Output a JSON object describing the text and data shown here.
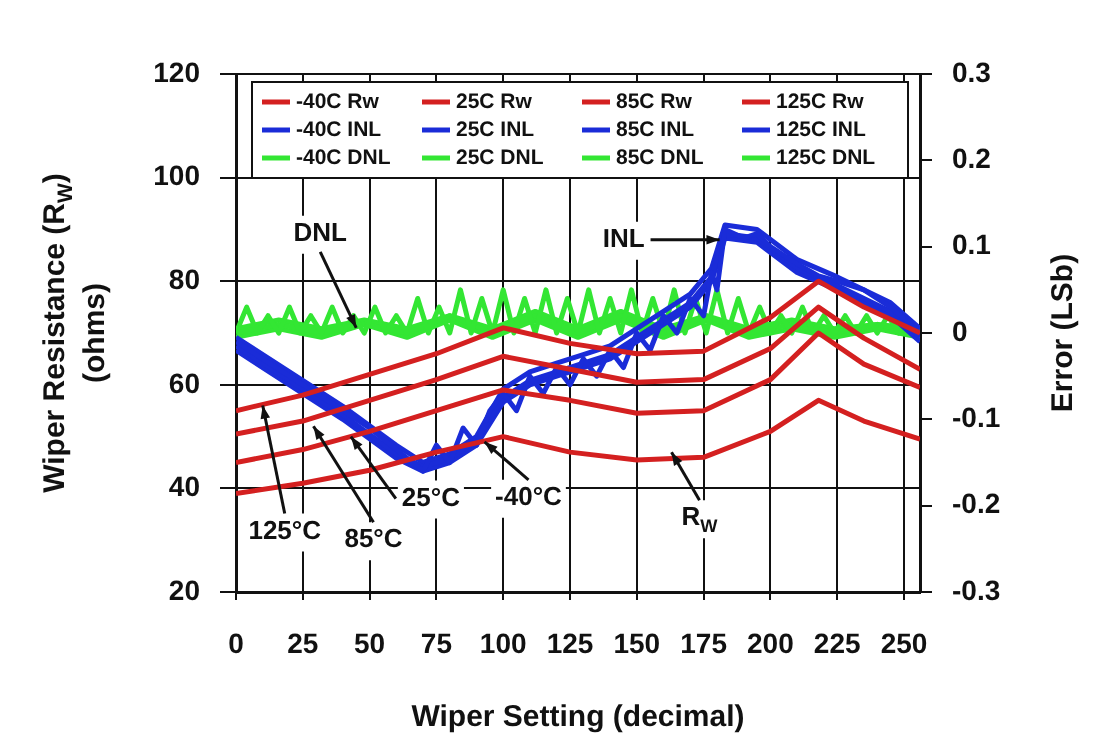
{
  "chart_data": {
    "type": "line",
    "xlabel": "Wiper Setting (decimal)",
    "ylabel": "Wiper Resistance (R$_{W}$) (ohms)",
    "y2label": "Error (LSb)",
    "xlim": [
      0,
      256
    ],
    "xticks": [
      0,
      25,
      50,
      75,
      100,
      125,
      150,
      175,
      200,
      225,
      250
    ],
    "ylim": [
      20,
      120
    ],
    "yticks": [
      20,
      40,
      60,
      80,
      100,
      120
    ],
    "y2lim": [
      -0.3,
      0.3
    ],
    "y2ticks": [
      -0.3,
      -0.2,
      -0.1,
      0,
      0.1,
      0.2,
      0.3
    ],
    "grid": true,
    "legend": "top",
    "marker": "none",
    "line_style": "solid",
    "series": [
      {
        "name": "-40C Rw",
        "color": "#d42020",
        "x": [
          0,
          25,
          50,
          75,
          100,
          125,
          150,
          175,
          200,
          218,
          235,
          256
        ],
        "values": [
          39,
          41,
          43.5,
          47,
          50,
          47,
          45.5,
          46,
          51,
          57,
          53,
          49.5
        ]
      },
      {
        "name": "25C Rw",
        "color": "#d42020",
        "x": [
          0,
          25,
          50,
          75,
          100,
          125,
          150,
          175,
          200,
          218,
          235,
          256
        ],
        "values": [
          45,
          47.5,
          51,
          55,
          59,
          57,
          54.5,
          55,
          61,
          70,
          64,
          59.5
        ]
      },
      {
        "name": "85C Rw",
        "color": "#d42020",
        "x": [
          0,
          25,
          50,
          75,
          100,
          125,
          150,
          175,
          200,
          218,
          235,
          256
        ],
        "values": [
          50.5,
          53,
          57,
          61,
          65.5,
          63,
          60.5,
          61,
          67,
          75,
          69,
          63
        ]
      },
      {
        "name": "125C Rw",
        "color": "#d42020",
        "x": [
          0,
          25,
          50,
          75,
          100,
          125,
          150,
          175,
          200,
          218,
          235,
          256
        ],
        "values": [
          55,
          58,
          62,
          66,
          71,
          68,
          66,
          66.5,
          73,
          80,
          75,
          70
        ]
      },
      {
        "name": "-40C INL",
        "color": "#1a2cd8",
        "axis": "y2",
        "x": [
          0,
          10,
          20,
          30,
          40,
          50,
          60,
          70,
          75,
          80,
          85,
          90,
          95,
          100,
          105,
          110,
          115,
          120,
          125,
          130,
          135,
          140,
          145,
          150,
          155,
          160,
          165,
          170,
          175,
          178,
          180,
          183,
          190,
          195,
          200,
          210,
          218,
          225,
          235,
          245,
          256
        ],
        "values": [
          -0.01,
          -0.03,
          -0.05,
          -0.07,
          -0.09,
          -0.11,
          -0.135,
          -0.16,
          -0.13,
          -0.15,
          -0.11,
          -0.13,
          -0.09,
          -0.07,
          -0.09,
          -0.05,
          -0.07,
          -0.04,
          -0.06,
          -0.03,
          -0.05,
          -0.02,
          -0.04,
          0,
          -0.02,
          0.02,
          0,
          0.04,
          0.02,
          0.07,
          0.05,
          0.12,
          0.11,
          0.115,
          0.1,
          0.08,
          0.066,
          0.06,
          0.05,
          0.03,
          0
        ]
      },
      {
        "name": "25C INL",
        "color": "#1a2cd8",
        "axis": "y2",
        "x": [
          0,
          20,
          40,
          60,
          70,
          80,
          90,
          100,
          110,
          120,
          130,
          140,
          150,
          160,
          170,
          178,
          183,
          195,
          210,
          225,
          245,
          256
        ],
        "values": [
          -0.015,
          -0.055,
          -0.095,
          -0.14,
          -0.155,
          -0.145,
          -0.125,
          -0.075,
          -0.055,
          -0.045,
          -0.035,
          -0.025,
          -0.005,
          0.015,
          0.035,
          0.065,
          0.115,
          0.11,
          0.075,
          0.055,
          0.025,
          -0.005
        ]
      },
      {
        "name": "85C INL",
        "color": "#1a2cd8",
        "axis": "y2",
        "x": [
          0,
          20,
          40,
          60,
          70,
          80,
          90,
          100,
          110,
          120,
          130,
          140,
          150,
          160,
          170,
          178,
          183,
          195,
          210,
          225,
          245,
          256
        ],
        "values": [
          -0.005,
          -0.045,
          -0.085,
          -0.13,
          -0.15,
          -0.14,
          -0.12,
          -0.065,
          -0.045,
          -0.035,
          -0.025,
          -0.015,
          0.005,
          0.025,
          0.045,
          0.075,
          0.125,
          0.12,
          0.085,
          0.065,
          0.035,
          0.005
        ]
      },
      {
        "name": "125C INL",
        "color": "#1a2cd8",
        "axis": "y2",
        "x": [
          0,
          20,
          40,
          60,
          70,
          80,
          90,
          100,
          110,
          120,
          130,
          140,
          150,
          160,
          170,
          178,
          183,
          195,
          210,
          225,
          245,
          256
        ],
        "values": [
          -0.02,
          -0.06,
          -0.1,
          -0.145,
          -0.16,
          -0.15,
          -0.13,
          -0.08,
          -0.06,
          -0.05,
          -0.04,
          -0.03,
          -0.01,
          0.01,
          0.03,
          0.06,
          0.11,
          0.105,
          0.07,
          0.05,
          0.02,
          -0.01
        ]
      },
      {
        "name": "-40C DNL",
        "color": "#33e633",
        "axis": "y2",
        "x": [
          0,
          4,
          8,
          12,
          16,
          20,
          24,
          28,
          32,
          36,
          40,
          44,
          48,
          52,
          56,
          60,
          64,
          68,
          72,
          76,
          80,
          84,
          88,
          92,
          96,
          100,
          104,
          108,
          112,
          116,
          120,
          124,
          128,
          132,
          136,
          140,
          144,
          148,
          152,
          156,
          160,
          164,
          168,
          172,
          176,
          180,
          184,
          188,
          192,
          196,
          200,
          204,
          208,
          212,
          216,
          220,
          224,
          228,
          232,
          236,
          240,
          244,
          248,
          252,
          256
        ],
        "values": [
          0,
          0.03,
          0,
          0.02,
          0,
          0.03,
          0,
          0.02,
          0,
          0.03,
          0,
          0.02,
          0,
          0.03,
          0,
          0.02,
          0,
          0.04,
          0,
          0.03,
          0,
          0.05,
          0,
          0.04,
          0,
          0.05,
          0,
          0.04,
          0,
          0.05,
          0,
          0.04,
          0,
          0.05,
          0,
          0.04,
          0,
          0.05,
          0,
          0.04,
          0,
          0.05,
          0,
          0.04,
          0,
          0.05,
          0,
          0.04,
          0,
          0.03,
          0,
          0.02,
          0,
          0.03,
          0,
          0.02,
          0,
          0.02,
          0,
          0.02,
          0,
          0.02,
          0,
          0.01,
          0
        ]
      },
      {
        "name": "25C DNL",
        "color": "#33e633",
        "axis": "y2",
        "x": [
          0,
          16,
          32,
          48,
          64,
          80,
          96,
          112,
          128,
          144,
          160,
          176,
          192,
          208,
          224,
          240,
          256
        ],
        "values": [
          0,
          0.01,
          0,
          0.01,
          0,
          0.02,
          0,
          0.02,
          0,
          0.02,
          0,
          0.02,
          0,
          0.01,
          0,
          0.01,
          0
        ]
      },
      {
        "name": "85C DNL",
        "color": "#33e633",
        "axis": "y2",
        "x": [
          0,
          16,
          32,
          48,
          64,
          80,
          96,
          112,
          128,
          144,
          160,
          176,
          192,
          208,
          224,
          240,
          256
        ],
        "values": [
          -0.005,
          0.005,
          -0.005,
          0.01,
          -0.005,
          0.015,
          -0.005,
          0.015,
          -0.005,
          0.015,
          -0.005,
          0.015,
          -0.005,
          0.005,
          -0.005,
          0.005,
          -0.005
        ]
      },
      {
        "name": "125C DNL",
        "color": "#33e633",
        "axis": "y2",
        "x": [
          0,
          16,
          32,
          48,
          64,
          80,
          96,
          112,
          128,
          144,
          160,
          176,
          192,
          208,
          224,
          240,
          256
        ],
        "values": [
          0.005,
          0.015,
          0.005,
          0.015,
          0.005,
          0.02,
          0.005,
          0.025,
          0.005,
          0.025,
          0.005,
          0.02,
          0.005,
          0.015,
          0.005,
          0.01,
          0.005
        ]
      }
    ],
    "annotations": [
      {
        "text": "DNL",
        "x": 45,
        "y": 71
      },
      {
        "text": "INL",
        "x": 181,
        "y": 88
      },
      {
        "text": "125°C",
        "x": 10,
        "y": 56
      },
      {
        "text": "85°C",
        "x": 29,
        "y": 52
      },
      {
        "text": "25°C",
        "x": 43,
        "y": 50
      },
      {
        "text": "-40°C",
        "x": 93,
        "y": 49
      },
      {
        "text": "R$_{W}$",
        "x": 163,
        "y": 47
      }
    ]
  }
}
